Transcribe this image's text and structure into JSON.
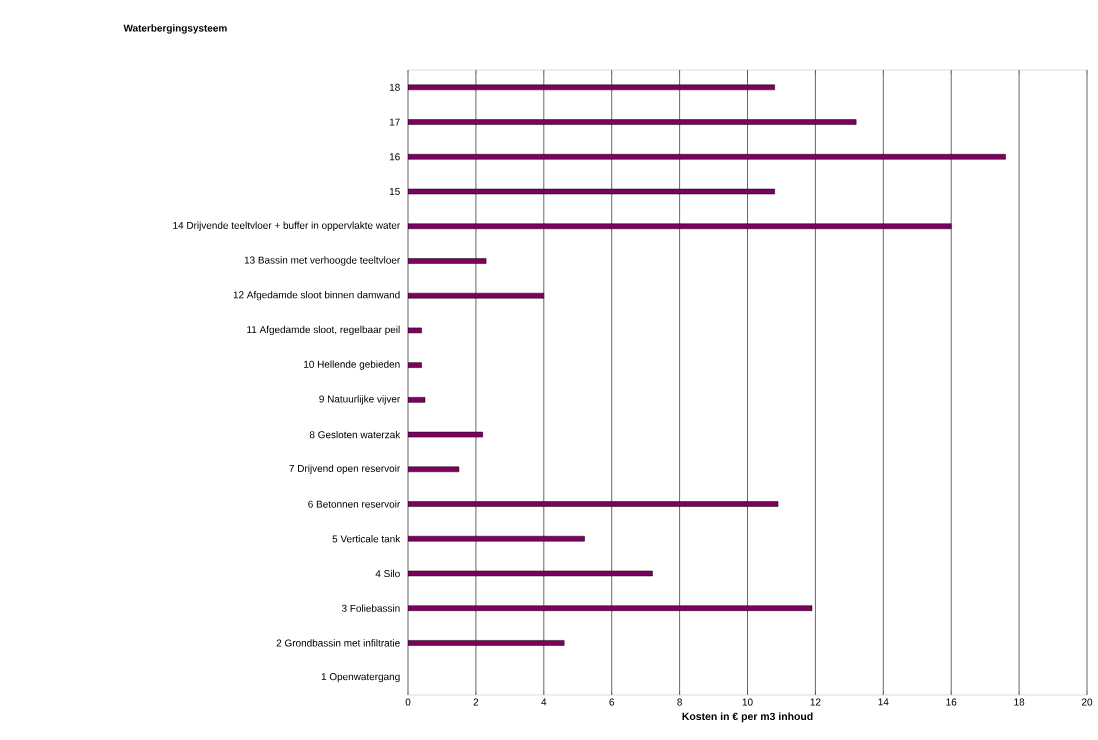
{
  "chart_data": {
    "type": "bar",
    "orientation": "horizontal",
    "title": "Waterbergingsysteem",
    "xlabel": "Kosten in € per m3 inhoud",
    "categories": [
      "18",
      "17",
      "16",
      "15",
      "14 Drijvende teeltvloer + buffer in oppervlakte water",
      "13 Bassin met verhoogde teeltvloer",
      "12 Afgedamde sloot binnen damwand",
      "11 Afgedamde sloot, regelbaar peil",
      "10 Hellende gebieden",
      "9 Natuurlijke vijver",
      "8 Gesloten waterzak",
      "7  Drijvend open reservoir",
      "6 Betonnen reservoir",
      "5 Verticale tank",
      "4 Silo",
      "3 Foliebassin",
      "2 Grondbassin met infiltratie",
      "1 Openwatergang"
    ],
    "values": [
      10.8,
      13.2,
      17.6,
      10.8,
      16.0,
      2.3,
      4.0,
      0.4,
      0.4,
      0.5,
      2.2,
      1.5,
      10.9,
      5.2,
      7.2,
      11.9,
      4.6,
      null
    ],
    "color": "#800060",
    "xlim": [
      0,
      20
    ],
    "xticks": [
      0,
      2,
      4,
      6,
      8,
      10,
      12,
      14,
      16,
      18,
      20
    ],
    "grid": "x"
  }
}
